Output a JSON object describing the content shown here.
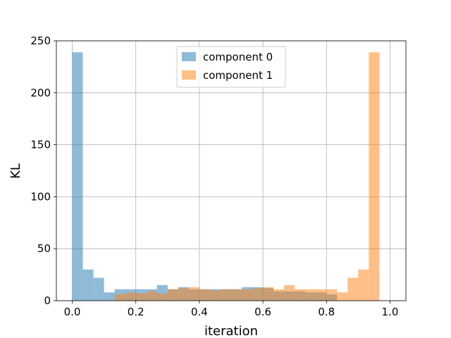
{
  "chart_data": {
    "type": "bar",
    "subtype": "overlapping-histogram",
    "title": "",
    "xlabel": "iteration",
    "ylabel": "KL",
    "xlim": [
      -0.05,
      1.05
    ],
    "ylim": [
      0,
      250
    ],
    "x_ticks": [
      "0.0",
      "0.2",
      "0.4",
      "0.6",
      "0.8",
      "1.0"
    ],
    "y_ticks": [
      "0",
      "50",
      "100",
      "150",
      "200",
      "250"
    ],
    "grid": true,
    "legend_position": "top-center",
    "bin_edges": [
      0.0,
      0.0333,
      0.0667,
      0.1,
      0.1333,
      0.1667,
      0.2,
      0.2333,
      0.2667,
      0.3,
      0.3333,
      0.3667,
      0.4,
      0.4333,
      0.4667,
      0.5,
      0.5333,
      0.5667,
      0.6,
      0.6333,
      0.6667,
      0.7,
      0.7333,
      0.7667,
      0.8,
      0.8333,
      0.8667,
      0.9,
      0.9333,
      0.9667,
      1.0
    ],
    "series": [
      {
        "name": "component 0",
        "color": "#1f77b4",
        "alpha": 0.5,
        "values": [
          239,
          30,
          22,
          8,
          11,
          11,
          11,
          11,
          15,
          11,
          13,
          11,
          11,
          11,
          11,
          11,
          13,
          13,
          12,
          9,
          9,
          9,
          8,
          8,
          6,
          0,
          0,
          0,
          0,
          0
        ]
      },
      {
        "name": "component 1",
        "color": "#ff7f0e",
        "alpha": 0.5,
        "values": [
          0,
          0,
          0,
          0,
          6,
          8,
          7,
          9,
          7,
          11,
          12,
          13,
          11,
          10,
          11,
          11,
          11,
          12,
          13,
          11,
          15,
          11,
          11,
          11,
          11,
          8,
          22,
          30,
          239,
          0
        ]
      }
    ]
  }
}
